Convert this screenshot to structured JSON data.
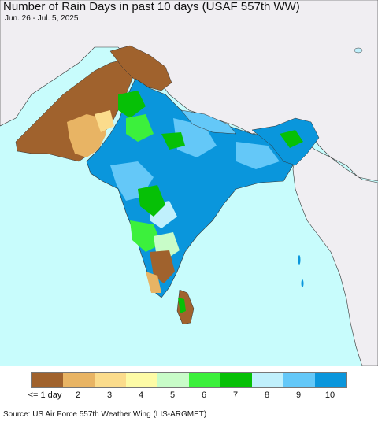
{
  "title": "Number of Rain Days in past 10 days (USAF 557th WW)",
  "date_range": "Jun. 26 - Jul. 5, 2025",
  "source": "Source: US Air Force 557th Weather Wing (LIS-ARGMET)",
  "legend": {
    "items": [
      {
        "label": "<= 1 day",
        "color": "#a0622d"
      },
      {
        "label": "2",
        "color": "#e8b464"
      },
      {
        "label": "3",
        "color": "#fbdc8c"
      },
      {
        "label": "4",
        "color": "#fdfba6"
      },
      {
        "label": "5",
        "color": "#c8fcc8"
      },
      {
        "label": "6",
        "color": "#3cf03c"
      },
      {
        "label": "7",
        "color": "#06c006"
      },
      {
        "label": "8",
        "color": "#c0f0fc"
      },
      {
        "label": "9",
        "color": "#64c8f8"
      },
      {
        "label": "10",
        "color": "#0a96dc"
      }
    ]
  },
  "colors": {
    "ocean": "#c8fcfc",
    "land_outside": "#f0eef2",
    "border": "#333333"
  }
}
